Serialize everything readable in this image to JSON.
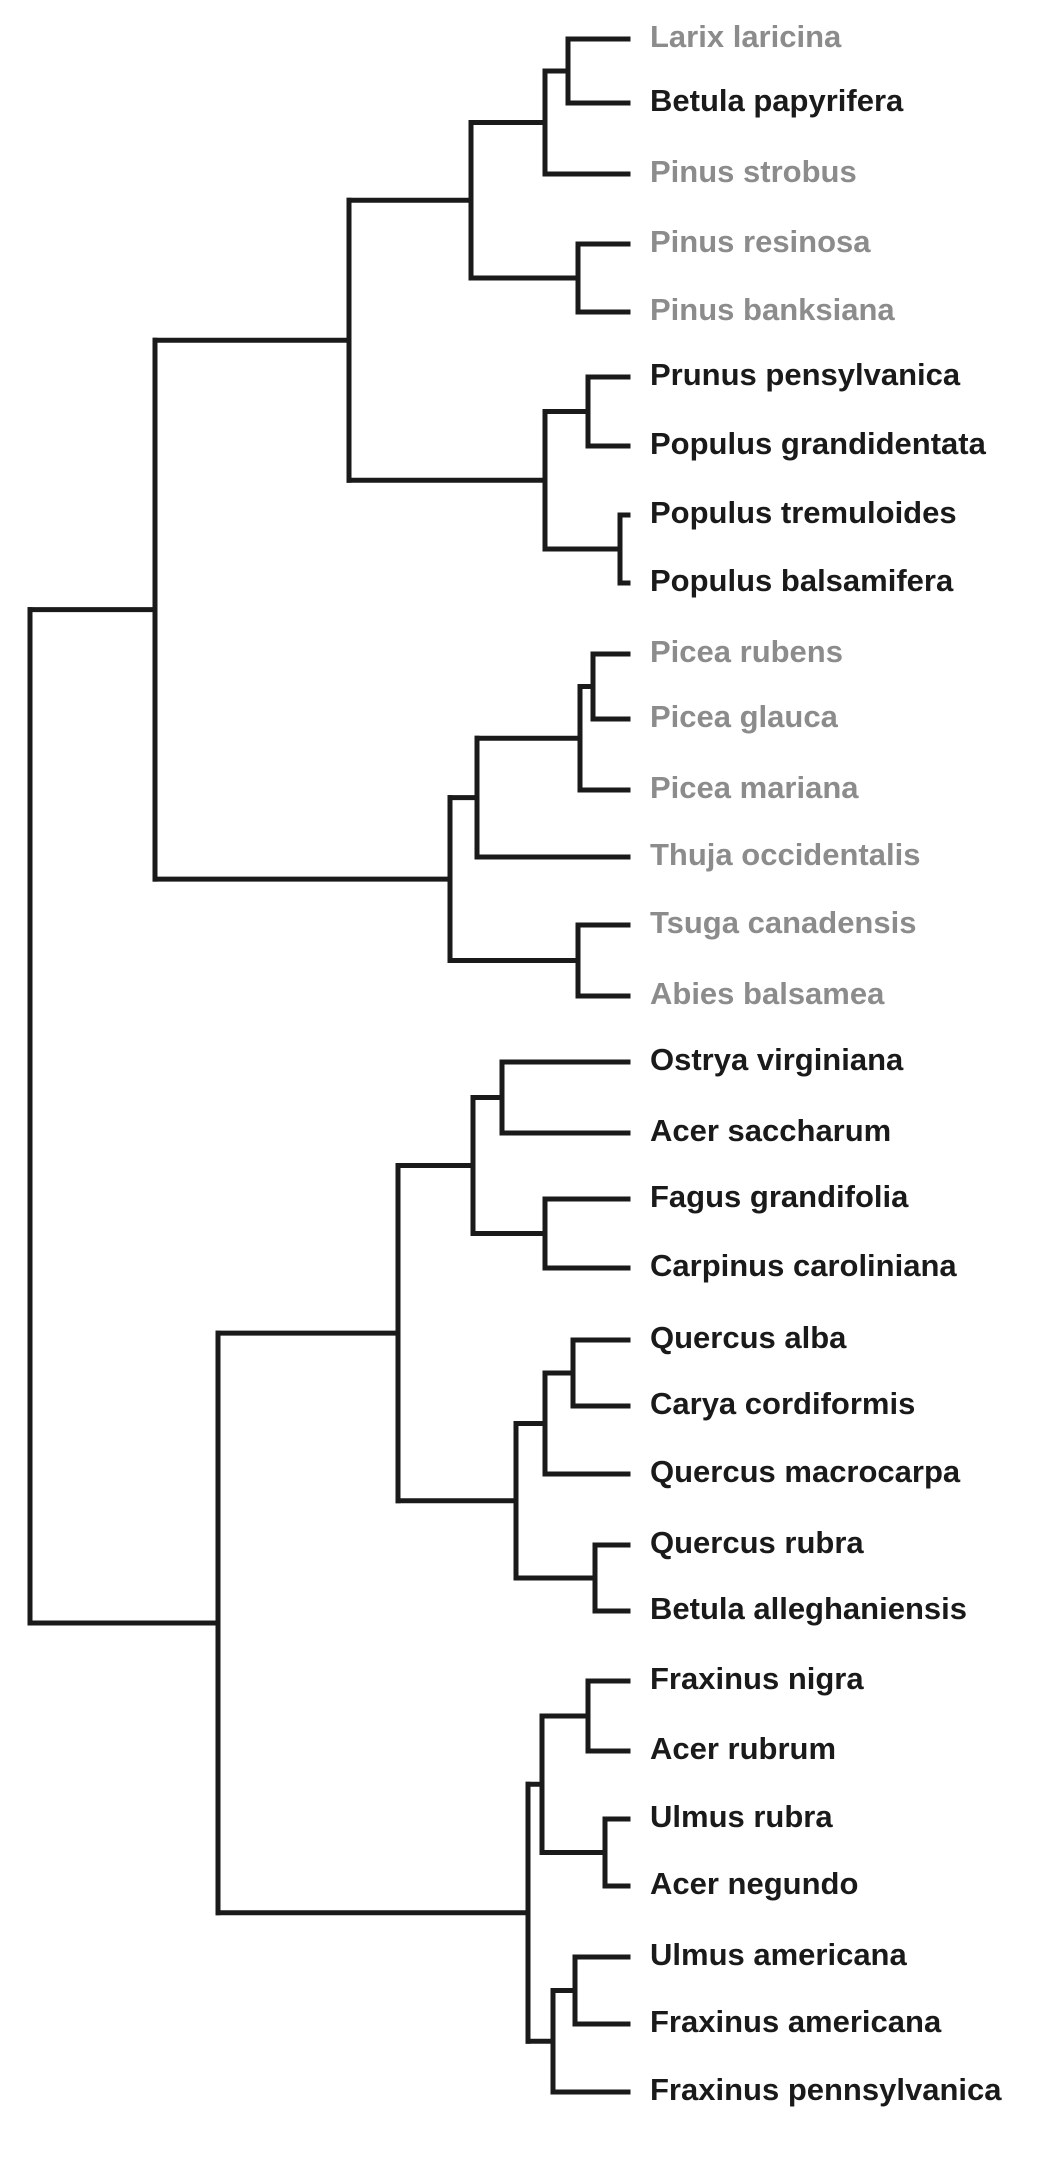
{
  "chart_data": {
    "type": "dendrogram",
    "orientation": "left-to-right",
    "colors": {
      "branch": "#1a1a1a",
      "dark_label": "#1a1a1a",
      "gray_label": "#8c8c8c"
    },
    "leaves": [
      {
        "label": "Larix laricina",
        "group": "gray"
      },
      {
        "label": "Betula papyrifera",
        "group": "dark"
      },
      {
        "label": "Pinus strobus",
        "group": "gray"
      },
      {
        "label": "Pinus resinosa",
        "group": "gray"
      },
      {
        "label": "Pinus banksiana",
        "group": "gray"
      },
      {
        "label": "Prunus pensylvanica",
        "group": "dark"
      },
      {
        "label": "Populus grandidentata",
        "group": "dark"
      },
      {
        "label": "Populus tremuloides",
        "group": "dark"
      },
      {
        "label": "Populus balsamifera",
        "group": "dark"
      },
      {
        "label": "Picea rubens",
        "group": "gray"
      },
      {
        "label": "Picea glauca",
        "group": "gray"
      },
      {
        "label": "Picea mariana",
        "group": "gray"
      },
      {
        "label": "Thuja occidentalis",
        "group": "gray"
      },
      {
        "label": "Tsuga canadensis",
        "group": "gray"
      },
      {
        "label": "Abies balsamea",
        "group": "gray"
      },
      {
        "label": "Ostrya virginiana",
        "group": "dark"
      },
      {
        "label": "Acer saccharum",
        "group": "dark"
      },
      {
        "label": "Fagus grandifolia",
        "group": "dark"
      },
      {
        "label": "Carpinus caroliniana",
        "group": "dark"
      },
      {
        "label": "Quercus alba",
        "group": "dark"
      },
      {
        "label": "Carya cordiformis",
        "group": "dark"
      },
      {
        "label": "Quercus macrocarpa",
        "group": "dark"
      },
      {
        "label": "Quercus rubra",
        "group": "dark"
      },
      {
        "label": "Betula alleghaniensis",
        "group": "dark"
      },
      {
        "label": "Fraxinus nigra",
        "group": "dark"
      },
      {
        "label": "Acer rubrum",
        "group": "dark"
      },
      {
        "label": "Ulmus rubra",
        "group": "dark"
      },
      {
        "label": "Acer negundo",
        "group": "dark"
      },
      {
        "label": "Ulmus americana",
        "group": "dark"
      },
      {
        "label": "Fraxinus americana",
        "group": "dark"
      },
      {
        "label": "Fraxinus pennsylvanica",
        "group": "dark"
      }
    ],
    "tree": [
      [
        [
          [
            [
              [
                0,
                1
              ],
              2
            ],
            [
              3,
              4
            ]
          ],
          [
            [
              5,
              6
            ],
            [
              7,
              8
            ]
          ]
        ],
        [
          [
            [
              [
                9,
                10
              ],
              11
            ],
            12
          ],
          [
            13,
            14
          ]
        ]
      ],
      [
        [
          [
            [
              15,
              16
            ],
            [
              17,
              18
            ]
          ],
          [
            [
              [
                19,
                20
              ],
              21
            ],
            [
              22,
              23
            ]
          ]
        ],
        [
          [
            [
              24,
              25
            ],
            [
              26,
              27
            ]
          ],
          [
            [
              28,
              29
            ],
            30
          ]
        ]
      ]
    ],
    "merge_heights": {
      "_comment_values_in_relative_units_0_is_leaves_1_is_root": true
    }
  }
}
